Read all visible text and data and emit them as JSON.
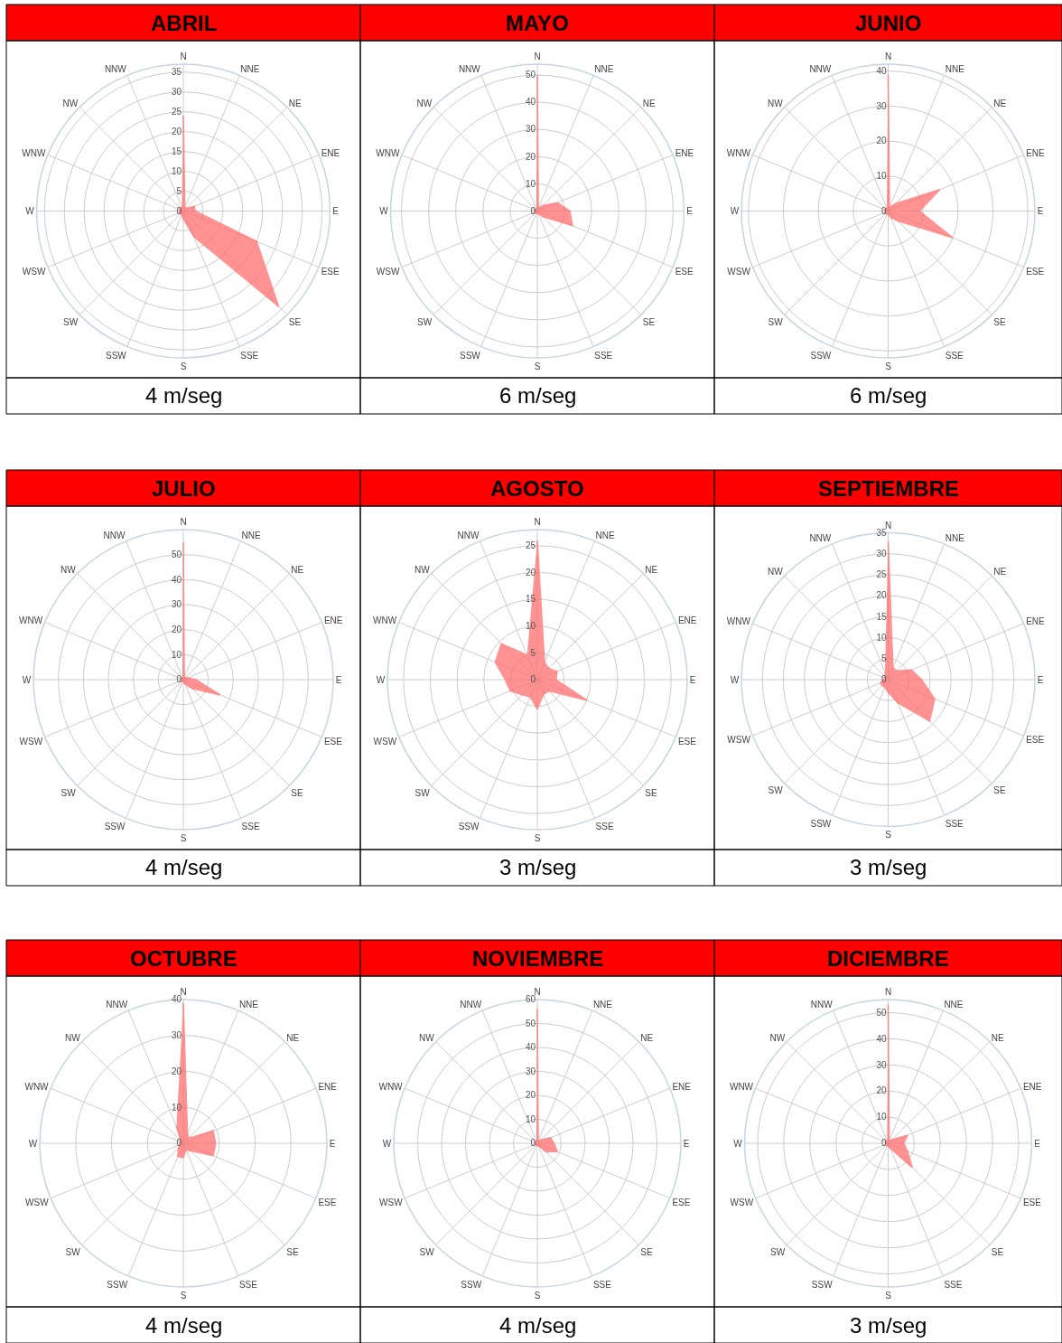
{
  "chart_data": [
    {
      "type": "radar",
      "title": "ABRIL",
      "annotations": [
        "4 m/seg"
      ],
      "categories": [
        "N",
        "NNE",
        "NE",
        "ENE",
        "E",
        "ESE",
        "SE",
        "SSE",
        "S",
        "SSW",
        "SW",
        "WSW",
        "W",
        "WNW",
        "NW",
        "NNW"
      ],
      "ylim": [
        0,
        37
      ],
      "yticks": [
        0,
        5,
        10,
        15,
        20,
        25,
        30,
        35
      ],
      "grid": true,
      "series": [
        {
          "color": "#ff6f6f",
          "values": [
            24,
            1,
            1,
            3,
            3,
            20,
            34,
            7,
            2,
            1,
            1,
            1,
            1,
            1,
            1,
            1
          ]
        }
      ]
    },
    {
      "type": "radar",
      "title": "MAYO",
      "annotations": [
        "6 m/seg"
      ],
      "categories": [
        "N",
        "NNE",
        "NE",
        "ENE",
        "E",
        "ESE",
        "SE",
        "SSE",
        "S",
        "SSW",
        "SW",
        "WSW",
        "W",
        "WNW",
        "NW",
        "NNW"
      ],
      "ylim": [
        0,
        54
      ],
      "yticks": [
        0,
        10,
        20,
        30,
        40,
        50
      ],
      "grid": true,
      "series": [
        {
          "color": "#ff6f6f",
          "values": [
            50,
            1,
            3,
            8,
            12,
            14,
            3,
            1,
            1,
            1,
            1,
            1,
            1,
            1,
            1,
            1
          ]
        }
      ]
    },
    {
      "type": "radar",
      "title": "JUNIO",
      "annotations": [
        "6 m/seg"
      ],
      "categories": [
        "N",
        "NNE",
        "NE",
        "ENE",
        "E",
        "ESE",
        "SE",
        "SSE",
        "S",
        "SSW",
        "SW",
        "WSW",
        "W",
        "WNW",
        "NW",
        "NNW"
      ],
      "ylim": [
        0,
        42
      ],
      "yticks": [
        0,
        10,
        20,
        30,
        40
      ],
      "grid": true,
      "series": [
        {
          "color": "#ff6f6f",
          "values": [
            39,
            1,
            3,
            16,
            9,
            20,
            4,
            2,
            1,
            1,
            1,
            1,
            1,
            1,
            1,
            1
          ]
        }
      ]
    },
    {
      "type": "radar",
      "title": "JULIO",
      "annotations": [
        "4 m/seg"
      ],
      "categories": [
        "N",
        "NNE",
        "NE",
        "ENE",
        "E",
        "ESE",
        "SE",
        "SSE",
        "S",
        "SSW",
        "SW",
        "WSW",
        "W",
        "WNW",
        "NW",
        "NNW"
      ],
      "ylim": [
        0,
        60
      ],
      "yticks": [
        0,
        10,
        20,
        30,
        40,
        50
      ],
      "grid": true,
      "series": [
        {
          "color": "#ff6f6f",
          "values": [
            55,
            1,
            1,
            2,
            5,
            16,
            5,
            2,
            1,
            1,
            1,
            1,
            1,
            1,
            1,
            1
          ]
        }
      ]
    },
    {
      "type": "radar",
      "title": "AGOSTO",
      "annotations": [
        "3 m/seg"
      ],
      "categories": [
        "N",
        "NNE",
        "NE",
        "ENE",
        "E",
        "ESE",
        "SE",
        "SSE",
        "S",
        "SSW",
        "SW",
        "WSW",
        "W",
        "WNW",
        "NW",
        "NNW"
      ],
      "ylim": [
        0,
        28
      ],
      "yticks": [
        0,
        5,
        10,
        15,
        20,
        25
      ],
      "grid": true,
      "series": [
        {
          "color": "#ff6f6f",
          "values": [
            26,
            3.5,
            3,
            4,
            3.5,
            10,
            3,
            3,
            5.5,
            3.5,
            4,
            5.5,
            6,
            8.5,
            9.5,
            5
          ]
        }
      ]
    },
    {
      "type": "radar",
      "title": "SEPTIEMBRE",
      "annotations": [
        "3 m/seg"
      ],
      "categories": [
        "N",
        "NNE",
        "NE",
        "ENE",
        "E",
        "ESE",
        "SE",
        "SSE",
        "S",
        "SSW",
        "SW",
        "WSW",
        "W",
        "WNW",
        "NW",
        "NNW"
      ],
      "ylim": [
        0,
        35
      ],
      "yticks": [
        0,
        5,
        10,
        15,
        20,
        25,
        30,
        35
      ],
      "grid": true,
      "series": [
        {
          "color": "#ff6f6f",
          "values": [
            33,
            3,
            3,
            6,
            8,
            12,
            14,
            6,
            3,
            2,
            2,
            2,
            1,
            1,
            1,
            2
          ]
        }
      ]
    },
    {
      "type": "radar",
      "title": "OCTUBRE",
      "annotations": [
        "4 m/seg"
      ],
      "categories": [
        "N",
        "NNE",
        "NE",
        "ENE",
        "E",
        "ESE",
        "SE",
        "SSE",
        "S",
        "SSW",
        "SW",
        "WSW",
        "W",
        "WNW",
        "NW",
        "NNW"
      ],
      "ylim": [
        0,
        40
      ],
      "yticks": [
        0,
        10,
        20,
        30,
        40
      ],
      "grid": true,
      "series": [
        {
          "color": "#ff6f6f",
          "values": [
            39,
            3,
            2,
            9,
            9,
            9,
            3,
            2,
            4,
            4,
            2,
            1,
            1,
            1,
            1,
            5
          ]
        }
      ]
    },
    {
      "type": "radar",
      "title": "NOVIEMBRE",
      "annotations": [
        "4 m/seg"
      ],
      "categories": [
        "N",
        "NNE",
        "NE",
        "ENE",
        "E",
        "ESE",
        "SE",
        "SSE",
        "S",
        "SSW",
        "SW",
        "WSW",
        "W",
        "WNW",
        "NW",
        "NNW"
      ],
      "ylim": [
        0,
        60
      ],
      "yticks": [
        0,
        10,
        20,
        30,
        40,
        50,
        60
      ],
      "grid": true,
      "series": [
        {
          "color": "#ff6f6f",
          "values": [
            56,
            1,
            2,
            6,
            7,
            9,
            5,
            1,
            1,
            1,
            1,
            1,
            1,
            1,
            1,
            1
          ]
        }
      ]
    },
    {
      "type": "radar",
      "title": "DICIEMBRE",
      "annotations": [
        "3 m/seg"
      ],
      "categories": [
        "N",
        "NNE",
        "NE",
        "ENE",
        "E",
        "ESE",
        "SE",
        "SSE",
        "S",
        "SSW",
        "SW",
        "WSW",
        "W",
        "WNW",
        "NW",
        "NNW"
      ],
      "ylim": [
        0,
        55
      ],
      "yticks": [
        0,
        10,
        20,
        30,
        40,
        50
      ],
      "grid": true,
      "series": [
        {
          "color": "#ff6f6f",
          "values": [
            53,
            1,
            2,
            8,
            6,
            8,
            13,
            2,
            1,
            1,
            1,
            1,
            1,
            1,
            1,
            1
          ]
        }
      ]
    }
  ]
}
